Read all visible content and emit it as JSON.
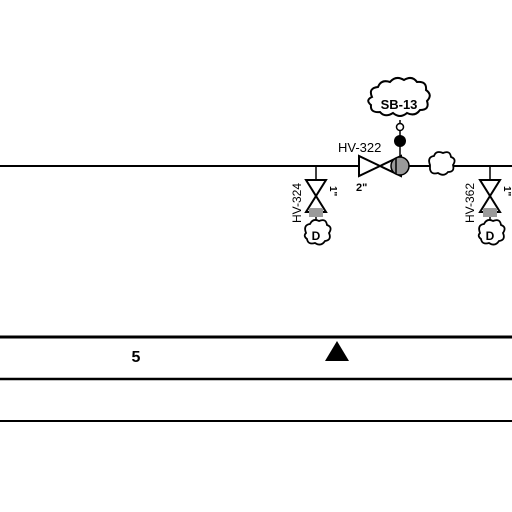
{
  "diagram": {
    "main_pipe": {},
    "valves": [
      {
        "tag": "HV-322",
        "size": "2\"",
        "orientation": "horizontal"
      },
      {
        "tag": "HV-324",
        "size": "1\"",
        "orientation": "vertical",
        "note": "D"
      },
      {
        "tag": "HV-362",
        "size": "1\"",
        "orientation": "vertical",
        "note": "D"
      }
    ],
    "instrument": {
      "tag": "SB-13"
    },
    "title_block": {
      "row_number": "5",
      "marker": "triangle"
    }
  },
  "colors": {
    "line": "#000000",
    "background": "#ffffff",
    "fill_gray": "#9a9a9a"
  }
}
